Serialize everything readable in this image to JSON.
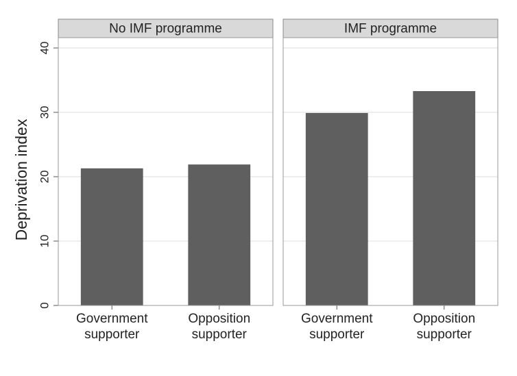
{
  "chart_data": [
    {
      "type": "bar",
      "title": "No IMF programme",
      "ylabel": "Deprivation index",
      "categories": [
        "Government supporter",
        "Opposition supporter"
      ],
      "values": [
        21.3,
        21.9
      ],
      "color": "#5f5f5f",
      "ylim": [
        0,
        41.6
      ],
      "yticks": [
        0,
        10,
        20,
        30,
        40
      ],
      "grid": true
    },
    {
      "type": "bar",
      "title": "IMF programme",
      "categories": [
        "Government supporter",
        "Opposition supporter"
      ],
      "values": [
        29.9,
        33.3
      ],
      "color": "#5f5f5f",
      "ylim": [
        0,
        41.6
      ],
      "yticks": [
        0,
        10,
        20,
        30,
        40
      ],
      "grid": true
    }
  ]
}
